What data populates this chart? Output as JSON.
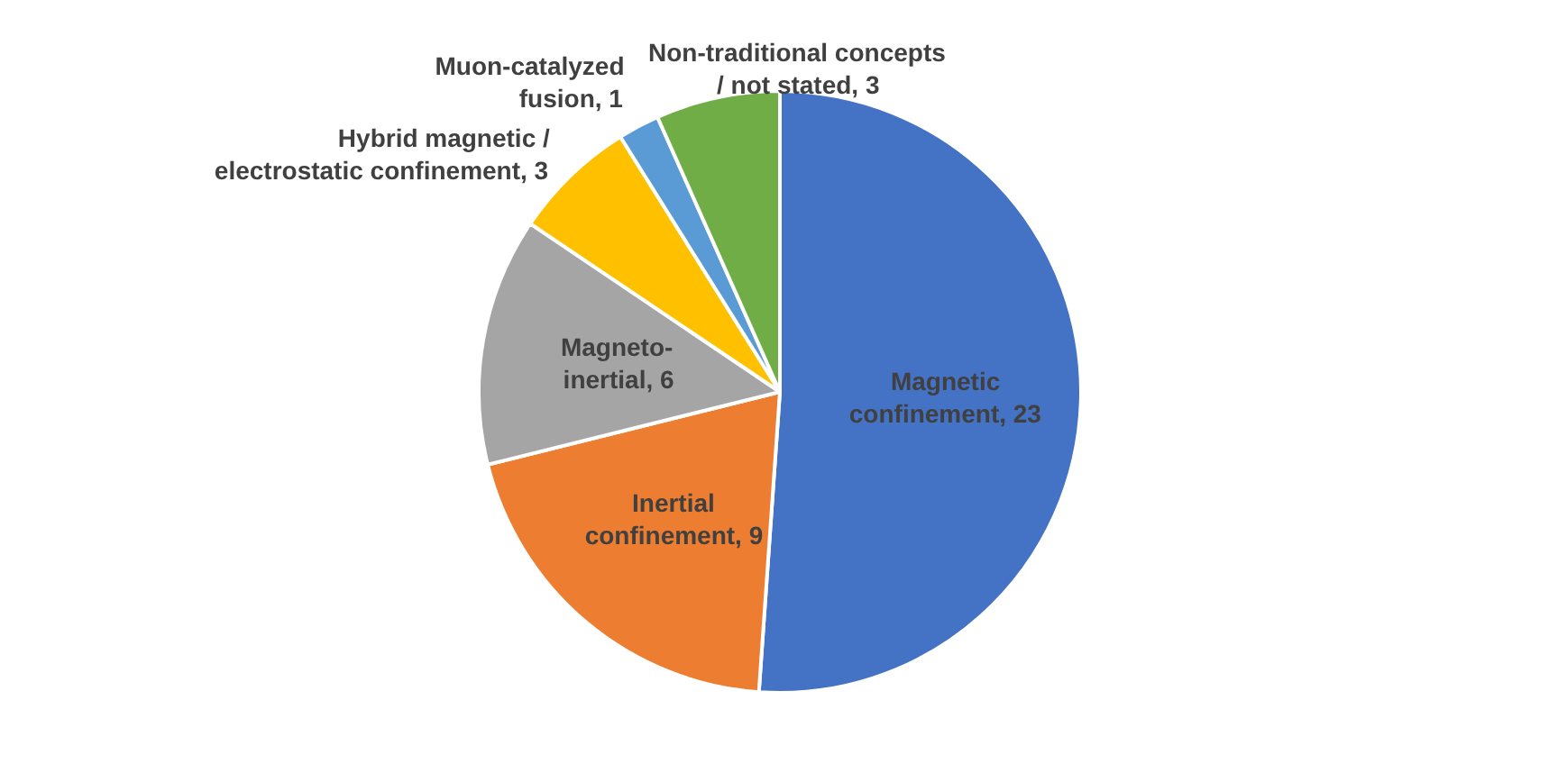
{
  "chart_data": {
    "type": "pie",
    "categories": [
      "Magnetic\nconfinement",
      "Inertial\nconfinement",
      "Magneto-\ninertial",
      "Hybrid magnetic /\nelectrostatic confinement",
      "Muon-catalyzed\nfusion",
      "Non-traditional concepts\n/ not stated"
    ],
    "values": [
      23,
      9,
      6,
      3,
      1,
      3
    ],
    "colors": [
      "#4472c4",
      "#ed7d31",
      "#a5a5a5",
      "#ffc000",
      "#5b9bd5",
      "#70ad47"
    ],
    "value_labels": [
      ", 23",
      ", 9",
      ", 6",
      ", 3",
      ", 1",
      ", 3"
    ]
  }
}
